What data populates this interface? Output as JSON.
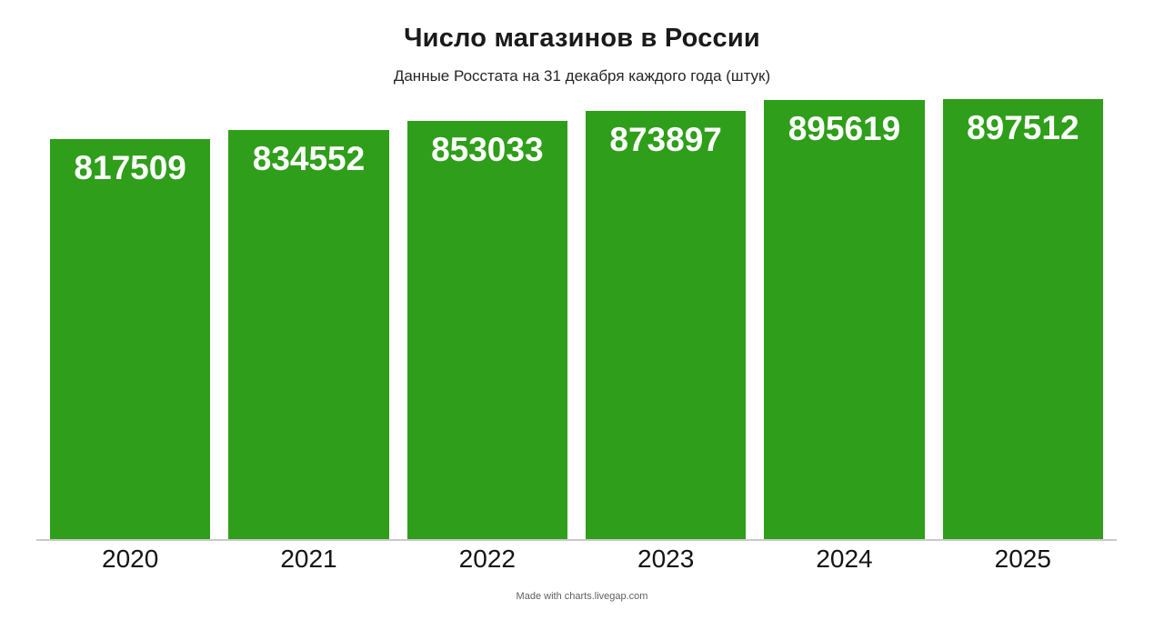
{
  "chart_data": {
    "type": "bar",
    "title": "Число магазинов в России",
    "subtitle": "Данные Росстата на 31 декабря каждого года (штук)",
    "categories": [
      "2020",
      "2021",
      "2022",
      "2023",
      "2024",
      "2025"
    ],
    "values": [
      817509,
      834552,
      853033,
      873897,
      895619,
      897512
    ],
    "value_labels": [
      "817509",
      "834552",
      "853033",
      "873897",
      "895619",
      "897512"
    ],
    "xlabel": "",
    "ylabel": "",
    "ylim": [
      0,
      915000
    ],
    "grid": false,
    "legend": false,
    "bar_color": "#2f9e1a",
    "value_label_color": "#ffffff",
    "axis_line_color": "#c9c9c9"
  },
  "footer": {
    "credit": "Made with charts.livegap.com"
  }
}
